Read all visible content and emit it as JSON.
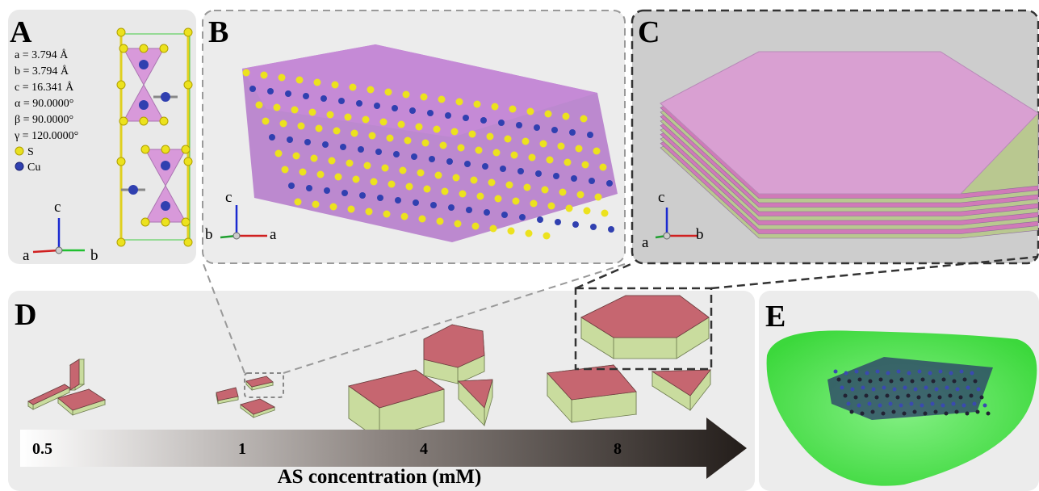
{
  "panels": {
    "A": {
      "label": "A",
      "parameters": [
        "a = 3.794 Å",
        "b = 3.794 Å",
        "c = 16.341 Å",
        "α = 90.0000°",
        "β = 90.0000°",
        "γ = 120.0000°"
      ],
      "legend": [
        {
          "label": "S"
        },
        {
          "label": "Cu"
        }
      ],
      "axes": {
        "up": "c",
        "left": "a",
        "right": "b"
      }
    },
    "B": {
      "label": "B",
      "axes": {
        "up": "c",
        "left": "b",
        "right": "a"
      }
    },
    "C": {
      "label": "C",
      "axes": {
        "up": "c",
        "left": "a",
        "right": "b"
      }
    },
    "D": {
      "label": "D",
      "concentrations": [
        0.5,
        1,
        4,
        8
      ],
      "axis_title": "AS concentration (mM)"
    },
    "E": {
      "label": "E"
    }
  }
}
